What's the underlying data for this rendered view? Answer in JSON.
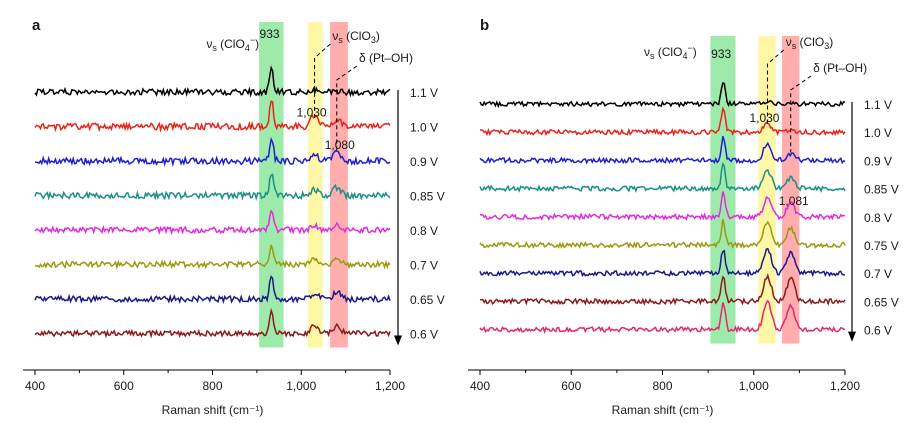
{
  "chart_data": [
    {
      "panel_label": "a",
      "type": "line",
      "xlabel": "Raman shift (cm⁻¹)",
      "xlim": [
        400,
        1200
      ],
      "xticks": [
        400,
        600,
        800,
        1000,
        1200
      ],
      "xtick_labels": [
        "400",
        "600",
        "800",
        "1,000",
        "1,200"
      ],
      "series": [
        {
          "name": "1.1 V",
          "color": "#000000",
          "amp": [
            1.0,
            0.1,
            0.0
          ],
          "noise": 3.0,
          "peak_labels": []
        },
        {
          "name": "1.0 V",
          "color": "#e8231b",
          "amp": [
            1.3,
            0.8,
            0.5
          ],
          "noise": 3.2,
          "peak_labels": [
            "1,030"
          ]
        },
        {
          "name": "0.9 V",
          "color": "#1f1fd0",
          "amp": [
            1.1,
            0.5,
            0.8
          ],
          "noise": 3.2,
          "peak_labels": [
            "1,080"
          ]
        },
        {
          "name": "0.85 V",
          "color": "#1a8f8a",
          "amp": [
            1.0,
            0.4,
            0.6
          ],
          "noise": 3.0,
          "peak_labels": []
        },
        {
          "name": "0.8 V",
          "color": "#e22be0",
          "amp": [
            0.9,
            0.3,
            0.4
          ],
          "noise": 2.8,
          "peak_labels": []
        },
        {
          "name": "0.7 V",
          "color": "#9a9a10",
          "amp": [
            0.9,
            0.4,
            0.4
          ],
          "noise": 2.8,
          "peak_labels": []
        },
        {
          "name": "0.65 V",
          "color": "#1a1a8c",
          "amp": [
            1.0,
            0.4,
            0.5
          ],
          "noise": 2.8,
          "peak_labels": []
        },
        {
          "name": "0.6 V",
          "color": "#8c1a1a",
          "amp": [
            1.0,
            0.6,
            0.5
          ],
          "noise": 2.6,
          "peak_labels": []
        }
      ],
      "bands": [
        {
          "x0": 905,
          "x1": 960,
          "color": "#4cd964"
        },
        {
          "x0": 1015,
          "x1": 1048,
          "color": "#fff15c"
        },
        {
          "x0": 1065,
          "x1": 1105,
          "color": "#ff6a6a"
        }
      ],
      "peak_centers": [
        933,
        1030,
        1080
      ],
      "annotations": [
        {
          "text_main": "ν",
          "text_sub": "s",
          "text_rest": " (ClO",
          "ion_sub": "4",
          "ion_sup": "−",
          "close": ")",
          "peak": 933,
          "label_x": 905
        },
        {
          "text_main": "ν",
          "text_sub": "s",
          "text_rest": " (ClO",
          "ion_sub": "3",
          "ion_sup": "",
          "close": ")",
          "peak": 1030,
          "label_x": 1070
        },
        {
          "text_main": "δ (Pt–OH)",
          "text_sub": "",
          "text_rest": "",
          "ion_sub": "",
          "ion_sup": "",
          "close": "",
          "peak": 1080,
          "label_x": 1130
        }
      ],
      "top_peak_label": "933",
      "arrow": true
    },
    {
      "panel_label": "b",
      "type": "line",
      "xlabel": "Raman shift (cm⁻¹)",
      "xlim": [
        400,
        1200
      ],
      "xticks": [
        400,
        600,
        800,
        1000,
        1200
      ],
      "xtick_labels": [
        "400",
        "600",
        "800",
        "1,000",
        "1,200"
      ],
      "series": [
        {
          "name": "1.1 V",
          "color": "#000000",
          "amp": [
            1.0,
            0.1,
            0.0
          ],
          "noise": 2.2,
          "peak_labels": []
        },
        {
          "name": "1.0 V",
          "color": "#e8231b",
          "amp": [
            1.1,
            0.6,
            0.2
          ],
          "noise": 2.4,
          "peak_labels": [
            "1,030"
          ]
        },
        {
          "name": "0.9 V",
          "color": "#1f1fd0",
          "amp": [
            1.1,
            1.2,
            0.5
          ],
          "noise": 2.4,
          "peak_labels": []
        },
        {
          "name": "0.85 V",
          "color": "#1a8f8a",
          "amp": [
            1.1,
            1.3,
            0.8
          ],
          "noise": 2.4,
          "peak_labels": []
        },
        {
          "name": "0.8 V",
          "color": "#e22be0",
          "amp": [
            1.1,
            1.3,
            1.0
          ],
          "noise": 2.4,
          "peak_labels": [
            "1,081"
          ]
        },
        {
          "name": "0.75 V",
          "color": "#9a9a10",
          "amp": [
            1.1,
            1.6,
            1.2
          ],
          "noise": 2.4,
          "peak_labels": []
        },
        {
          "name": "0.7 V",
          "color": "#1a1a8c",
          "amp": [
            1.1,
            1.7,
            1.4
          ],
          "noise": 2.4,
          "peak_labels": []
        },
        {
          "name": "0.65 V",
          "color": "#8c1a1a",
          "amp": [
            1.2,
            1.8,
            1.6
          ],
          "noise": 2.4,
          "peak_labels": []
        },
        {
          "name": "0.6 V",
          "color": "#e2286e",
          "amp": [
            1.3,
            2.0,
            1.8
          ],
          "noise": 2.4,
          "peak_labels": []
        }
      ],
      "bands": [
        {
          "x0": 905,
          "x1": 960,
          "color": "#4cd964"
        },
        {
          "x0": 1010,
          "x1": 1048,
          "color": "#fff15c"
        },
        {
          "x0": 1062,
          "x1": 1100,
          "color": "#ff6a6a"
        }
      ],
      "peak_centers": [
        933,
        1030,
        1081
      ],
      "annotations": [
        {
          "text_main": "ν",
          "text_sub": "s",
          "text_rest": " (ClO",
          "ion_sub": "4",
          "ion_sup": "−",
          "close": ")",
          "peak": 933,
          "label_x": 875
        },
        {
          "text_main": "ν",
          "text_sub": "s",
          "text_rest": " (ClO",
          "ion_sub": "3",
          "ion_sup": "",
          "close": ")",
          "peak": 1030,
          "label_x": 1070
        },
        {
          "text_main": "δ (Pt–OH)",
          "text_sub": "",
          "text_rest": "",
          "ion_sub": "",
          "ion_sup": "",
          "close": "",
          "peak": 1081,
          "label_x": 1130
        }
      ],
      "top_peak_label": "933",
      "arrow": true
    }
  ]
}
